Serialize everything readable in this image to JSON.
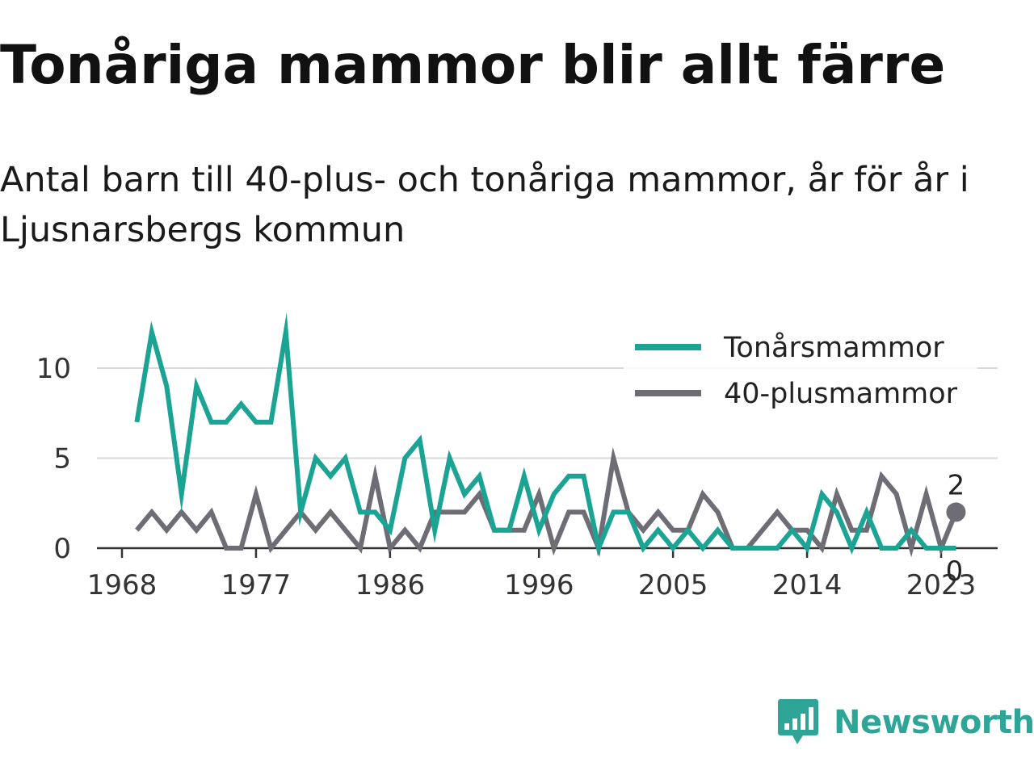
{
  "header": {
    "title": "Tonåriga mammor blir allt färre",
    "subtitle": "Antal barn till 40-plus- och tonåriga mammor, år för år i Ljusnarsbergs kommun"
  },
  "brand": {
    "name": "Newsworthy",
    "icon": "bar-chart-speech-bubble-icon",
    "color": "#2fa597"
  },
  "chart_data": {
    "type": "line",
    "title": "",
    "xlabel": "",
    "ylabel": "",
    "x_ticks": [
      1968,
      1977,
      1986,
      1996,
      2005,
      2014,
      2023
    ],
    "y_ticks": [
      0,
      5,
      10
    ],
    "xlim": [
      1968,
      2024
    ],
    "ylim": [
      0,
      12
    ],
    "grid": true,
    "legend": "top-right",
    "end_labels": [
      {
        "series": "40-plusmammor",
        "label": "2"
      },
      {
        "series": "Tonårsmammor",
        "label": "0"
      }
    ],
    "x": [
      1969,
      1970,
      1971,
      1972,
      1973,
      1974,
      1975,
      1976,
      1977,
      1978,
      1979,
      1980,
      1981,
      1982,
      1983,
      1984,
      1985,
      1986,
      1987,
      1988,
      1989,
      1990,
      1991,
      1992,
      1993,
      1994,
      1995,
      1996,
      1997,
      1998,
      1999,
      2000,
      2001,
      2002,
      2003,
      2004,
      2005,
      2006,
      2007,
      2008,
      2009,
      2010,
      2011,
      2012,
      2013,
      2014,
      2015,
      2016,
      2017,
      2018,
      2019,
      2020,
      2021,
      2022,
      2023,
      2024
    ],
    "series": [
      {
        "name": "Tonårsmammor",
        "color": "#1ba394",
        "values": [
          7,
          12,
          9,
          3,
          9,
          7,
          7,
          8,
          7,
          7,
          12,
          2,
          5,
          4,
          5,
          2,
          2,
          1,
          5,
          6,
          1,
          5,
          3,
          4,
          1,
          1,
          4,
          1,
          3,
          4,
          4,
          0,
          2,
          2,
          0,
          1,
          0,
          1,
          0,
          1,
          0,
          0,
          0,
          0,
          1,
          0,
          3,
          2,
          0,
          2,
          0,
          0,
          1,
          0,
          0,
          0
        ]
      },
      {
        "name": "40-plusmammor",
        "color": "#6e6d75",
        "values": [
          1,
          2,
          1,
          2,
          1,
          2,
          0,
          0,
          3,
          0,
          1,
          2,
          1,
          2,
          1,
          0,
          4,
          0,
          1,
          0,
          2,
          2,
          2,
          3,
          1,
          1,
          1,
          3,
          0,
          2,
          2,
          0,
          5,
          2,
          1,
          2,
          1,
          1,
          3,
          2,
          0,
          0,
          1,
          2,
          1,
          1,
          0,
          3,
          1,
          1,
          4,
          3,
          0,
          3,
          0,
          2
        ]
      }
    ]
  }
}
